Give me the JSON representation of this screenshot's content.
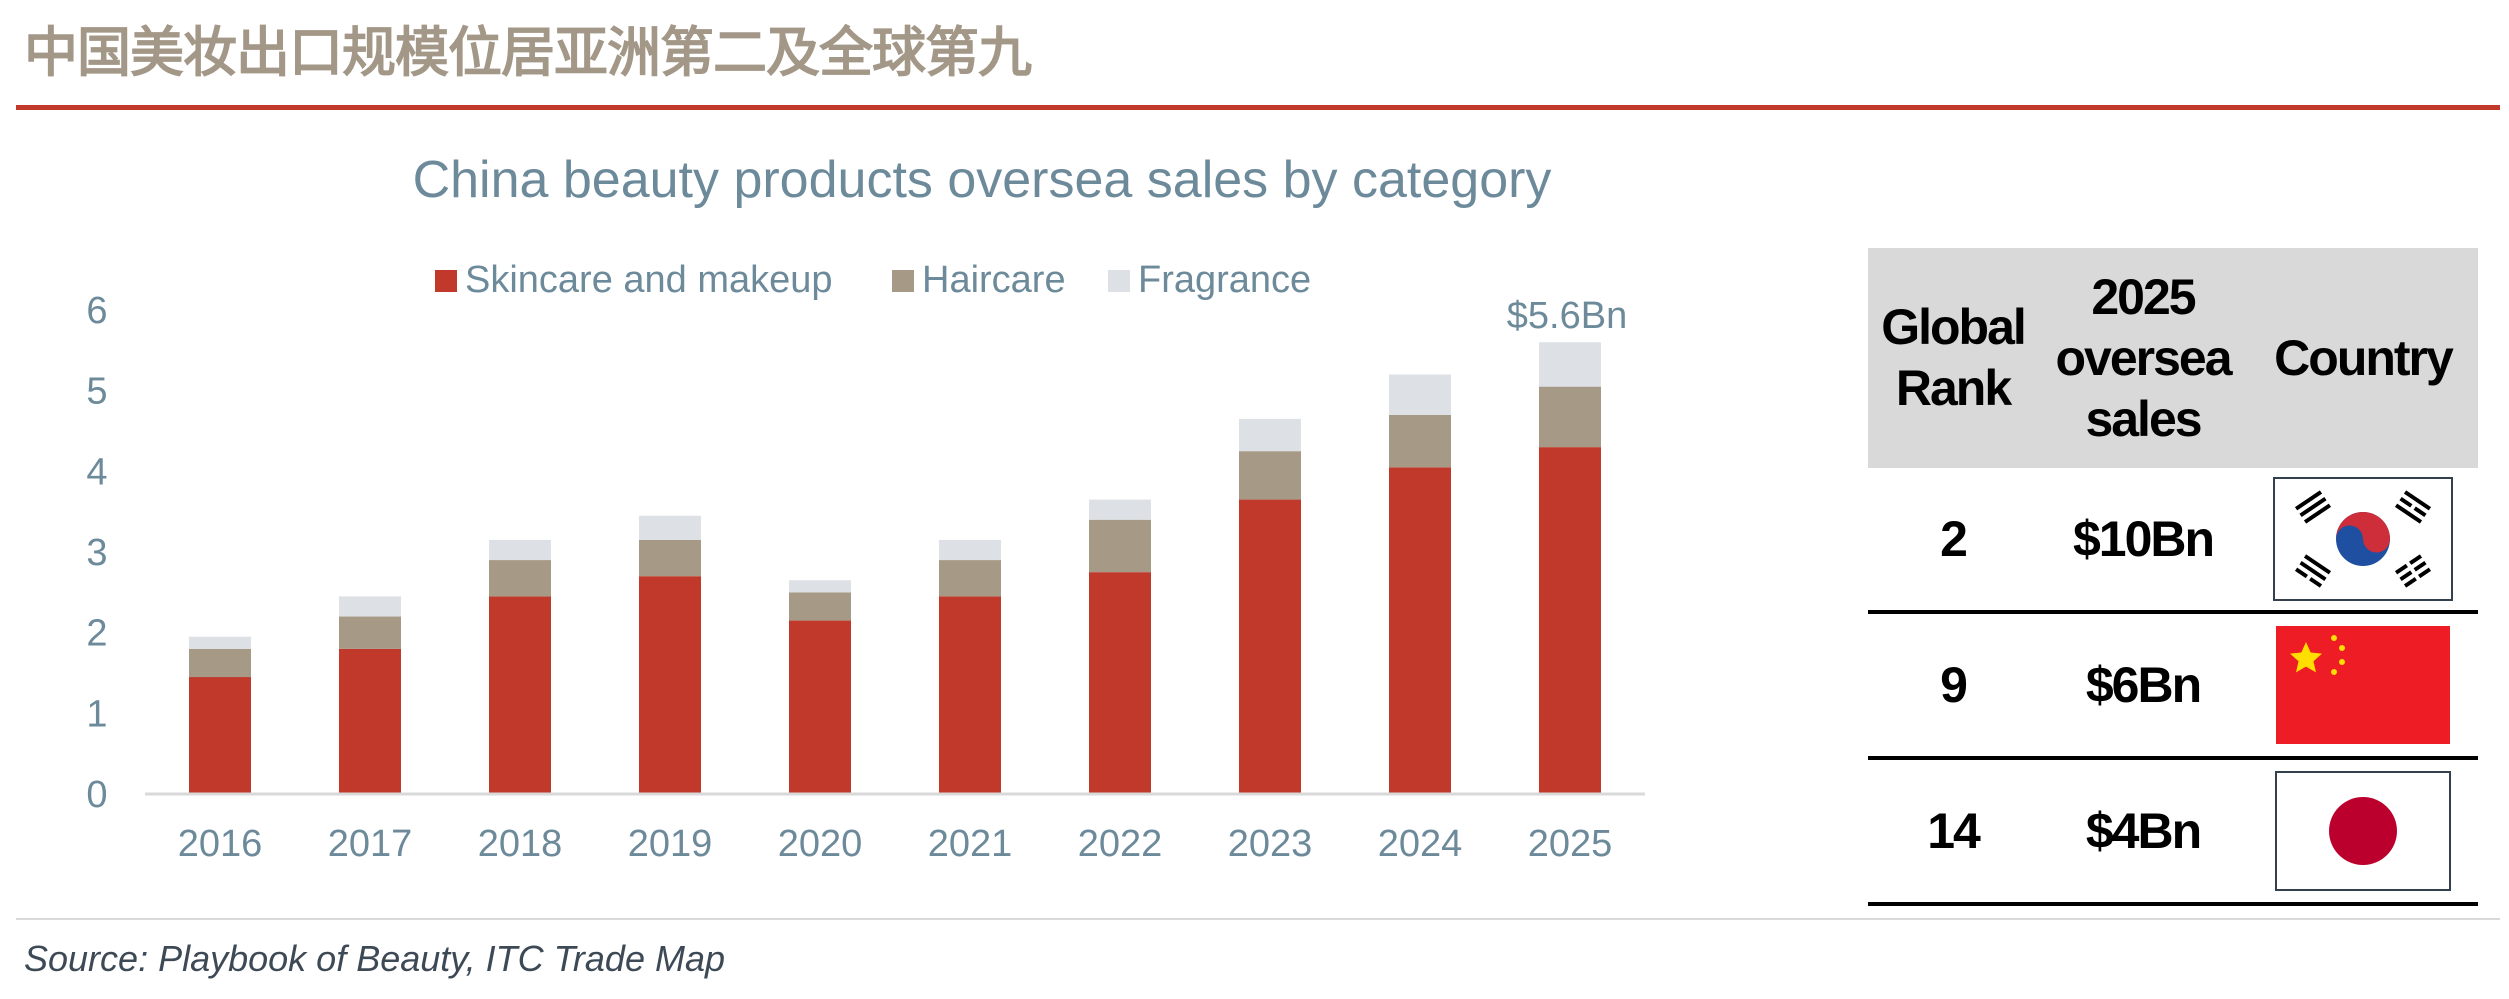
{
  "page": {
    "title": "中国美妆出口规模位居亚洲第二及全球第九",
    "source": "Source: Playbook of Beauty, ITC Trade Map"
  },
  "colors": {
    "accent": "#c0392b",
    "skincare": "#c0392b",
    "haircare": "#a69a87",
    "fragrance": "#dde1e5",
    "axis_text": "#6d8a9b"
  },
  "chart_data": {
    "type": "bar",
    "stacked": true,
    "title": "China beauty products oversea sales by category",
    "categories": [
      "2016",
      "2017",
      "2018",
      "2019",
      "2020",
      "2021",
      "2022",
      "2023",
      "2024",
      "2025"
    ],
    "series": [
      {
        "name": "Skincare and makeup",
        "color": "#c0392b",
        "values": [
          1.45,
          1.8,
          2.45,
          2.7,
          2.15,
          2.45,
          2.75,
          3.65,
          4.05,
          4.3
        ]
      },
      {
        "name": "Haircare",
        "color": "#a69a87",
        "values": [
          0.35,
          0.4,
          0.45,
          0.45,
          0.35,
          0.45,
          0.65,
          0.6,
          0.65,
          0.75
        ]
      },
      {
        "name": "Fragrance",
        "color": "#dde1e5",
        "values": [
          0.15,
          0.25,
          0.25,
          0.3,
          0.15,
          0.25,
          0.25,
          0.4,
          0.5,
          0.55
        ]
      }
    ],
    "ylim": [
      0,
      6
    ],
    "yticks": [
      0,
      1,
      2,
      3,
      4,
      5,
      6
    ],
    "annotation": "$5.6Bn",
    "legend_position": "top",
    "grid": false
  },
  "table": {
    "headers": {
      "rank": [
        "Global",
        "Rank"
      ],
      "sales": [
        "2025",
        "oversea",
        "sales"
      ],
      "country": "Country"
    },
    "rows": [
      {
        "rank": "2",
        "sales": "$10Bn",
        "flag": "south-korea-flag-icon"
      },
      {
        "rank": "9",
        "sales": "$6Bn",
        "flag": "china-flag-icon"
      },
      {
        "rank": "14",
        "sales": "$4Bn",
        "flag": "japan-flag-icon"
      }
    ]
  }
}
